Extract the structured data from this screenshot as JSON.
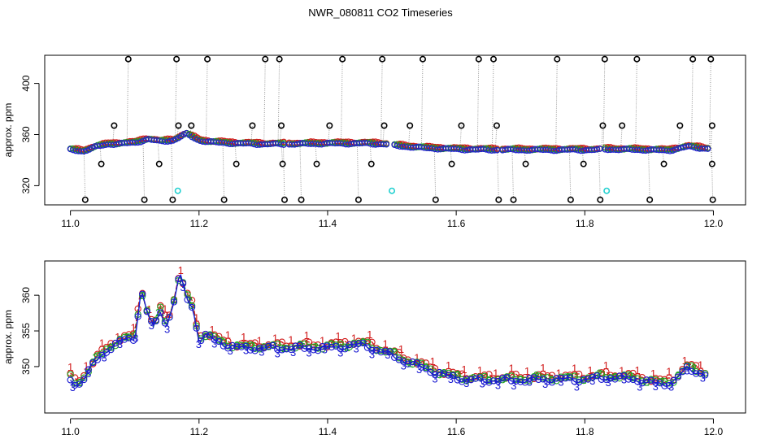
{
  "title": "NWR_080811  CO2 Timeseries",
  "chart_data": [
    {
      "type": "scatter",
      "ylabel": "approx. ppm",
      "xlim": [
        10.96,
        12.05
      ],
      "ylim": [
        305,
        422
      ],
      "xticks": [
        "11.0",
        "11.2",
        "11.4",
        "11.6",
        "11.8",
        "12.0"
      ],
      "yticks": [
        "320",
        "360",
        "400"
      ],
      "baseline": [
        [
          11.0,
          348.5
        ],
        [
          11.02,
          347.5
        ],
        [
          11.04,
          351
        ],
        [
          11.06,
          353
        ],
        [
          11.08,
          353.5
        ],
        [
          11.1,
          354
        ],
        [
          11.12,
          357
        ],
        [
          11.14,
          355
        ],
        [
          11.16,
          356
        ],
        [
          11.18,
          361
        ],
        [
          11.2,
          356
        ],
        [
          11.22,
          354.5
        ],
        [
          11.26,
          353.5
        ],
        [
          11.3,
          353
        ],
        [
          11.33,
          353
        ],
        [
          11.34,
          353
        ],
        [
          11.4,
          353.5
        ],
        [
          11.46,
          353.5
        ],
        [
          11.49,
          353
        ],
        [
          11.5,
          352
        ],
        [
          11.55,
          350
        ],
        [
          11.6,
          349
        ],
        [
          11.66,
          348.5
        ],
        [
          11.67,
          348.5
        ],
        [
          11.75,
          348.5
        ],
        [
          11.82,
          348.5
        ],
        [
          11.83,
          349
        ],
        [
          11.9,
          348.5
        ],
        [
          11.93,
          348
        ],
        [
          11.96,
          351
        ],
        [
          11.99,
          349.5
        ]
      ],
      "gaps": [
        [
          11.335,
          11.34
        ],
        [
          11.495,
          11.5
        ],
        [
          11.665,
          11.67
        ],
        [
          11.825,
          11.83
        ]
      ],
      "outliers_high": [
        11.088,
        11.163,
        11.211,
        11.301,
        11.323,
        11.421,
        11.483,
        11.546,
        11.633,
        11.656,
        11.755,
        11.829,
        11.879,
        11.966,
        11.994
      ],
      "outliers_low": [
        11.021,
        11.113,
        11.157,
        11.237,
        11.331,
        11.357,
        11.446,
        11.566,
        11.664,
        11.687,
        11.776,
        11.822,
        11.899,
        11.997
      ],
      "outliers_mid_high": [
        11.066,
        11.166,
        11.186,
        11.281,
        11.326,
        11.401,
        11.486,
        11.526,
        11.606,
        11.661,
        11.826,
        11.856,
        11.946,
        11.996
      ],
      "outliers_mid_low": [
        11.046,
        11.136,
        11.256,
        11.328,
        11.381,
        11.466,
        11.591,
        11.706,
        11.796,
        11.921,
        11.996
      ],
      "cyan_points": [
        [
          11.167,
          316
        ],
        [
          11.5,
          316
        ],
        [
          11.834,
          316
        ]
      ]
    },
    {
      "type": "line",
      "ylabel": "approx. ppm",
      "xlim": [
        10.96,
        12.05
      ],
      "ylim": [
        343.5,
        364.8
      ],
      "xticks": [
        "11.0",
        "11.2",
        "11.4",
        "11.6",
        "11.8",
        "12.0"
      ],
      "yticks": [
        "350",
        "355",
        "360"
      ],
      "series_markers": [
        "1",
        "2",
        "3"
      ],
      "series": [
        {
          "color": "#d11a1a",
          "offset": 0.9
        },
        {
          "color": "#1fa51f",
          "offset": 0.0
        },
        {
          "color": "#1a1ad1",
          "offset": -0.7
        }
      ],
      "baseline": [
        [
          11.0,
          348.5
        ],
        [
          11.01,
          347.5
        ],
        [
          11.02,
          348.5
        ],
        [
          11.04,
          351
        ],
        [
          11.06,
          352.8
        ],
        [
          11.08,
          353.8
        ],
        [
          11.1,
          354.2
        ],
        [
          11.11,
          361
        ],
        [
          11.12,
          357.5
        ],
        [
          11.13,
          355.5
        ],
        [
          11.14,
          358
        ],
        [
          11.15,
          356
        ],
        [
          11.16,
          359
        ],
        [
          11.17,
          363
        ],
        [
          11.18,
          360
        ],
        [
          11.19,
          358.5
        ],
        [
          11.2,
          354
        ],
        [
          11.21,
          354.5
        ],
        [
          11.24,
          353.3
        ],
        [
          11.26,
          352.8
        ],
        [
          11.3,
          352.8
        ],
        [
          11.33,
          352.8
        ],
        [
          11.4,
          352.8
        ],
        [
          11.44,
          353.2
        ],
        [
          11.46,
          353.2
        ],
        [
          11.48,
          352.4
        ],
        [
          11.5,
          351.8
        ],
        [
          11.52,
          351
        ],
        [
          11.55,
          350
        ],
        [
          11.58,
          349
        ],
        [
          11.62,
          348.3
        ],
        [
          11.66,
          348.3
        ],
        [
          11.7,
          348.3
        ],
        [
          11.75,
          348.4
        ],
        [
          11.8,
          348.4
        ],
        [
          11.84,
          348.7
        ],
        [
          11.88,
          348.4
        ],
        [
          11.92,
          347.7
        ],
        [
          11.94,
          348.2
        ],
        [
          11.96,
          350
        ],
        [
          11.99,
          349
        ]
      ]
    }
  ]
}
